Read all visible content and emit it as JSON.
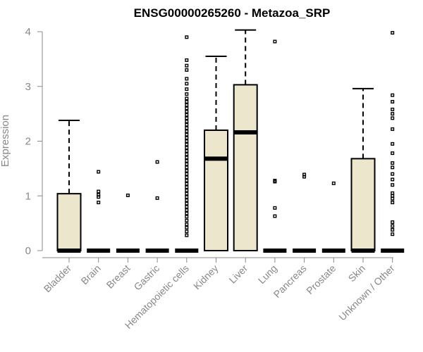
{
  "chart_data": {
    "type": "boxplot",
    "title": "ENSG00000265260 - Metazoa_SRP",
    "xlabel": "",
    "ylabel": "Expression",
    "ylim": [
      0,
      4
    ],
    "yticks": [
      0,
      1,
      2,
      3,
      4
    ],
    "colors": {
      "box_fill": "#ece6cd",
      "axis": "#888888",
      "text_muted": "#888888",
      "stroke": "#000000"
    },
    "categories": [
      "Bladder",
      "Brain",
      "Breast",
      "Gastric",
      "Hematopoietic cells",
      "Kidney",
      "Liver",
      "Lung",
      "Pancreas",
      "Prostate",
      "Skin",
      "Unknown / Other"
    ],
    "boxes": [
      {
        "q1": 0,
        "median": 0,
        "q3": 1.04,
        "whisker_low": 0,
        "whisker_high": 2.38,
        "outliers": []
      },
      {
        "q1": 0,
        "median": 0,
        "q3": 0,
        "whisker_low": 0,
        "whisker_high": 0,
        "outliers": [
          0.88,
          0.98,
          1.02,
          1.08,
          1.44
        ]
      },
      {
        "q1": 0,
        "median": 0,
        "q3": 0,
        "whisker_low": 0,
        "whisker_high": 0,
        "outliers": [
          1.01
        ]
      },
      {
        "q1": 0,
        "median": 0,
        "q3": 0,
        "whisker_low": 0,
        "whisker_high": 0,
        "outliers": [
          0.96,
          1.62
        ]
      },
      {
        "q1": 0,
        "median": 0,
        "q3": 0,
        "whisker_low": 0,
        "whisker_high": 0,
        "outliers": [
          0.28,
          0.35,
          0.42,
          0.48,
          0.55,
          0.62,
          0.68,
          0.74,
          0.8,
          0.86,
          0.92,
          0.98,
          1.04,
          1.1,
          1.16,
          1.22,
          1.28,
          1.34,
          1.4,
          1.46,
          1.52,
          1.58,
          1.64,
          1.7,
          1.76,
          1.82,
          1.88,
          1.94,
          2.0,
          2.06,
          2.12,
          2.18,
          2.24,
          2.3,
          2.36,
          2.42,
          2.48,
          2.54,
          2.6,
          2.66,
          2.72,
          2.78,
          2.86,
          2.95,
          3.05,
          3.14,
          3.3,
          3.38,
          3.48,
          3.9
        ]
      },
      {
        "q1": 0,
        "median": 1.68,
        "q3": 2.2,
        "whisker_low": 0,
        "whisker_high": 3.55,
        "outliers": []
      },
      {
        "q1": 0,
        "median": 2.16,
        "q3": 3.03,
        "whisker_low": 0,
        "whisker_high": 4.03,
        "outliers": []
      },
      {
        "q1": 0,
        "median": 0,
        "q3": 0,
        "whisker_low": 0,
        "whisker_high": 0,
        "outliers": [
          0.63,
          0.78,
          1.26,
          1.28,
          3.82
        ]
      },
      {
        "q1": 0,
        "median": 0,
        "q3": 0,
        "whisker_low": 0,
        "whisker_high": 0,
        "outliers": [
          1.35,
          1.39
        ]
      },
      {
        "q1": 0,
        "median": 0,
        "q3": 0,
        "whisker_low": 0,
        "whisker_high": 0,
        "outliers": [
          1.23
        ]
      },
      {
        "q1": 0,
        "median": 0,
        "q3": 1.68,
        "whisker_low": 0,
        "whisker_high": 2.96,
        "outliers": []
      },
      {
        "q1": 0,
        "median": 0,
        "q3": 0,
        "whisker_low": 0,
        "whisker_high": 0,
        "outliers": [
          0.3,
          0.38,
          0.45,
          0.52,
          0.88,
          0.95,
          1.0,
          1.05,
          1.2,
          1.3,
          1.4,
          1.52,
          1.6,
          1.78,
          1.95,
          2.22,
          2.42,
          2.5,
          2.58,
          2.72,
          2.84,
          3.98
        ]
      }
    ]
  }
}
